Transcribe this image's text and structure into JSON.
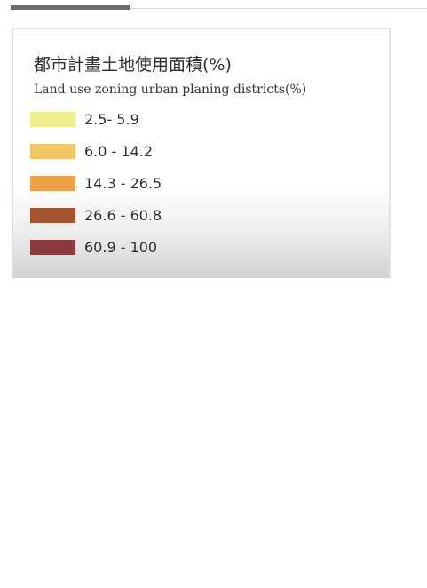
{
  "legend": {
    "title": "都市計畫土地使用面積(%)",
    "subtitle": "Land use zoning urban planing districts(%)",
    "classes": [
      {
        "label": "2.5- 5.9",
        "color": "#efee8c"
      },
      {
        "label": "6.0 - 14.2",
        "color": "#f1c665"
      },
      {
        "label": "14.3 - 26.5",
        "color": "#eda24a"
      },
      {
        "label": "26.6 - 60.8",
        "color": "#a55431"
      },
      {
        "label": "60.9 - 100",
        "color": "#8c3a3d"
      }
    ]
  }
}
